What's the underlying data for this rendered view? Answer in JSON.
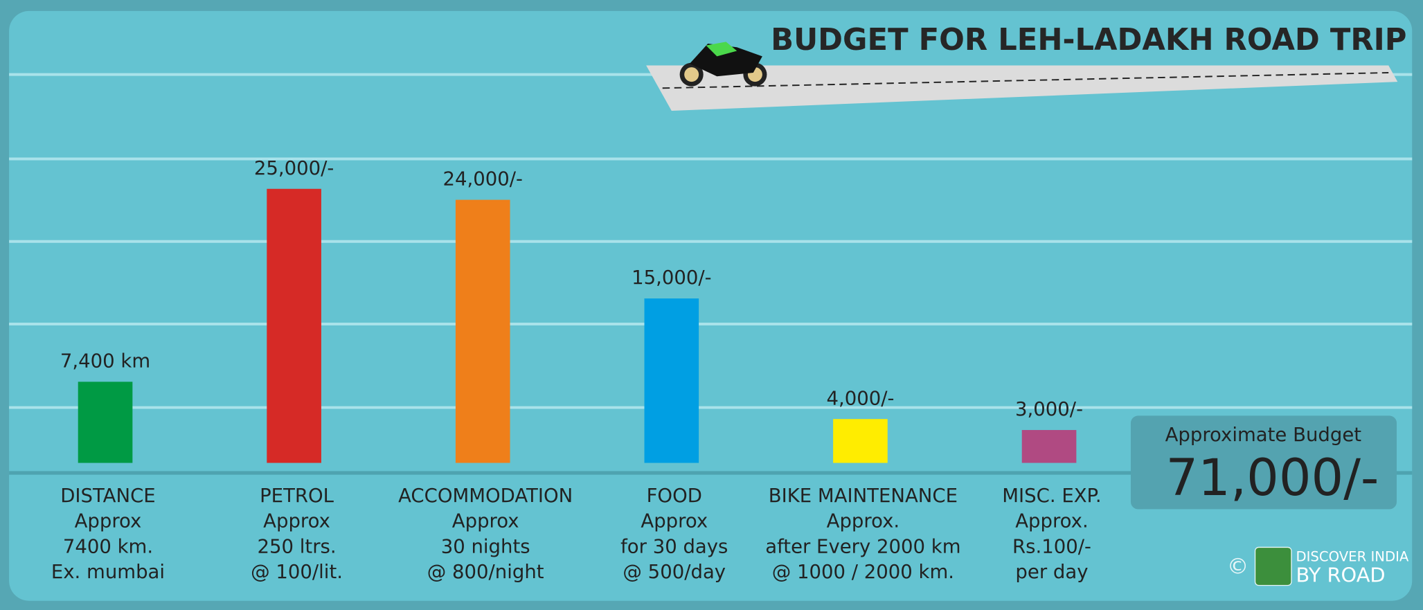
{
  "chart_data": {
    "type": "bar",
    "title": "BUDGET FOR LEH-LADAKH ROAD TRIP",
    "categories": [
      "DISTANCE",
      "PETROL",
      "ACCOMMODATION",
      "FOOD",
      "BIKE MAINTENANCE",
      "MISC. EXP."
    ],
    "descriptions": [
      [
        "Approx",
        "7400 km.",
        "Ex. mumbai"
      ],
      [
        "Approx",
        "250 ltrs.",
        "@ 100/lit."
      ],
      [
        "Approx",
        "30 nights",
        "@ 800/night"
      ],
      [
        "Approx",
        "for 30 days",
        "@ 500/day"
      ],
      [
        "Approx.",
        "after Every 2000 km",
        "@ 1000 / 2000 km."
      ],
      [
        "Approx.",
        "Rs.100/-",
        "per day"
      ]
    ],
    "values": [
      7400,
      25000,
      24000,
      15000,
      4000,
      3000
    ],
    "value_labels": [
      "7,400 km",
      "25,000/-",
      "24,000/-",
      "15,000/-",
      "4,000/-",
      "3,000/-"
    ],
    "colors": [
      "#009a44",
      "#d62a26",
      "#ef7f1a",
      "#009fe3",
      "#ffed00",
      "#b04a82"
    ],
    "total_title": "Approximate Budget",
    "total": "71,000/-",
    "branding": {
      "copyright": "©",
      "line1": "DISCOVER INDIA",
      "line2": "BY ROAD"
    }
  }
}
